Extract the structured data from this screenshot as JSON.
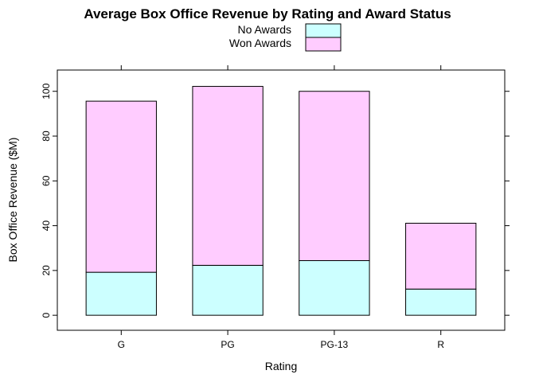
{
  "chart_data": {
    "type": "bar",
    "stacked": true,
    "title": "Average Box Office Revenue by Rating and Award Status",
    "xlabel": "Rating",
    "ylabel": "Box Office Revenue ($M)",
    "categories": [
      "G",
      "PG",
      "PG-13",
      "R"
    ],
    "series": [
      {
        "name": "No Awards",
        "values": [
          19.2,
          22.3,
          24.4,
          11.7
        ],
        "color": "#ccffff"
      },
      {
        "name": "Won Awards",
        "values": [
          76.4,
          79.9,
          75.6,
          29.4
        ],
        "color": "#ffccff"
      }
    ],
    "ylim": [
      -6.7,
      109.5
    ],
    "yticks": [
      0,
      20,
      40,
      60,
      80,
      100
    ],
    "grid": false,
    "legend_position": "top-center"
  }
}
